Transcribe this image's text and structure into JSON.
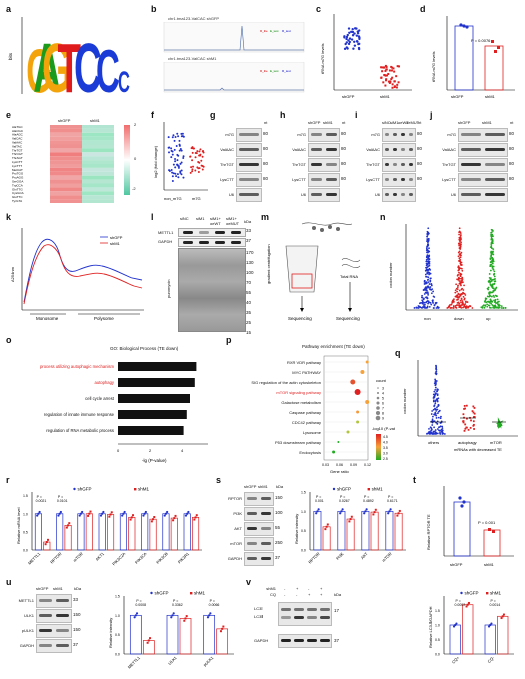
{
  "panels": {
    "a": "a",
    "b": "b",
    "c": "c",
    "d": "d",
    "e": "e",
    "f": "f",
    "g": "g",
    "h": "h",
    "i": "i",
    "j": "j",
    "k": "k",
    "l": "l",
    "m": "m",
    "n": "n",
    "o": "o",
    "p": "p",
    "q": "q",
    "r": "r",
    "s": "s",
    "t": "t",
    "u": "u",
    "v": "v"
  },
  "a": {
    "ylabel": "bits"
  },
  "b": {
    "track1": "chr1.tma123-ValCAC shGFP",
    "track2": "chr1.tma123-ValCAC shM1"
  },
  "c": {
    "ylabel": "tRNA m7G levels",
    "groups": [
      "shGFP",
      "shM1"
    ]
  },
  "d": {
    "ylabel": "tRNA m7G levels",
    "groups": [
      "shGFP",
      "shM1"
    ],
    "pvalue": "P = 0.0076"
  },
  "e": {
    "cols": [
      "shGFP",
      "shM1"
    ],
    "scale": [
      "2",
      "0",
      "-2"
    ]
  },
  "f": {
    "ylabel": "log2 (fold change)",
    "groups": [
      "non_m7G",
      "m7G"
    ]
  },
  "g": {
    "rows": [
      "m7G",
      "ValAAC",
      "ThrTGT",
      "LysCTT",
      "U6"
    ],
    "nt": "nt",
    "mw": [
      "80",
      "80",
      "80",
      "80"
    ]
  },
  "h": {
    "cols": [
      "shGFP",
      "shM1"
    ],
    "rows": [
      "m7G",
      "ValAAC",
      "ThrTGT",
      "LysCTT",
      "U6"
    ],
    "nt": "nt",
    "mw": [
      "80",
      "80",
      "80",
      "80"
    ]
  },
  "i": {
    "cols": [
      "siNC",
      "siM1",
      "oeWT",
      "oeMUT"
    ],
    "rows": [
      "m7G",
      "ValAAC",
      "ThrTGT",
      "LysCTT",
      "U6"
    ],
    "nt": "nt",
    "mw": [
      "80",
      "80",
      "80",
      "80"
    ]
  },
  "j": {
    "cols": [
      "shGFP",
      "shM1"
    ],
    "rows": [
      "m7G",
      "ValAAC",
      "ThrTGT",
      "LysCTT",
      "U6"
    ],
    "nt": "nt",
    "mw": [
      "80",
      "80",
      "80",
      "80"
    ]
  },
  "k": {
    "ylabel": "A254nm",
    "legend": [
      "shGFP",
      "shM1"
    ],
    "xlabels": [
      "Monosome",
      "Polysome"
    ]
  },
  "l": {
    "cols": [
      "siNC",
      "siM1",
      "siM1+ oeWT",
      "siM1+ oeMUT"
    ],
    "kda": "kDa",
    "rows": [
      "METTL1",
      "GAPDH",
      "puromycin"
    ],
    "mw": [
      "33",
      "37",
      "170",
      "130",
      "100",
      "70",
      "55",
      "40",
      "35",
      "25",
      "15"
    ]
  },
  "m": {
    "steps": [
      "gradient centrifugation",
      "Total RNA",
      "Sequencing",
      "Sequencing"
    ]
  },
  "n": {
    "ylabel": "codon number",
    "groups": [
      "non",
      "down",
      "up"
    ]
  },
  "o": {
    "title": "GO: Biological Process (TE down)",
    "terms": [
      "process utilizing autophagic mechanism",
      "autophagy",
      "cell cycle arrest",
      "regulation of innate immune response",
      "regulation of RNA metabolic process"
    ],
    "xlabel": "-lg (P-value)"
  },
  "p": {
    "title": "Pathway enrichment (TE down)",
    "terms": [
      "RXR VDR pathway",
      "MYC PATHWAY",
      "SIG regulation of the actin cytoskeleton",
      "mTOR signaling pathway",
      "Galactose metabolism",
      "Caspase pathway",
      "CDC42 pathway",
      "Lysosome",
      "P53 downstream pathway",
      "Endocytosis"
    ],
    "xlabel": "Gene ratio",
    "legend_count": "count",
    "legend_p": "-log10 (P-value)"
  },
  "q": {
    "ylabel": "codon number",
    "groups": [
      "others",
      "autophagy",
      "mTOR"
    ],
    "xlabel": "mRNAs with decreased TE"
  },
  "r": {
    "ylabel": "Relative mRNA level",
    "legend": [
      "shGFP",
      "shM1"
    ],
    "genes": [
      "METTL1",
      "RPTOR",
      "mTOR",
      "AKT1",
      "PIK3C2A",
      "PIK3CA",
      "PIK3CB",
      "PIK3R1"
    ],
    "pvals": [
      "P = 0.0021",
      "P = 0.0101"
    ]
  },
  "s": {
    "cols": [
      "shGFP",
      "shM1"
    ],
    "kda": "kDa",
    "rows": [
      "RPTOR",
      "PI3K",
      "AKT",
      "mTOR",
      "GAPDH"
    ],
    "mw": [
      "150",
      "100",
      "55",
      "250",
      "37"
    ],
    "ylabel": "Relative intensity",
    "legend": [
      "shGFP",
      "shM1"
    ],
    "genes": [
      "RPTOR",
      "PI3K",
      "AKT",
      "mTOR"
    ],
    "pvals": [
      "P = 0.001",
      "P = 0.0267",
      "P = 0.4892",
      "P = 0.6171"
    ]
  },
  "t": {
    "ylabel": "Relative RPTOR TE",
    "groups": [
      "shGFP",
      "shM1"
    ],
    "pvalue": "P = 0.001"
  },
  "u": {
    "cols": [
      "shGFP",
      "shM1"
    ],
    "kda": "kDa",
    "rows": [
      "METTL1",
      "ULK1",
      "pULK1",
      "GAPDH"
    ],
    "mw": [
      "33",
      "150",
      "150",
      "37"
    ],
    "ylabel": "Relative intensity",
    "legend": [
      "shGFP",
      "shM1"
    ],
    "genes": [
      "METTL1",
      "ULK1",
      "pULK1"
    ],
    "pvals": [
      "P = 0.0008",
      "P = 0.3362",
      "P = 0.0066"
    ]
  },
  "v": {
    "rows_top": [
      "shM1",
      "CQ"
    ],
    "signs": [
      "-",
      "+",
      "-",
      "+",
      "-",
      "-",
      "+",
      "+"
    ],
    "kda": "kDa",
    "rows": [
      "LC3Ⅰ",
      "LC3Ⅱ",
      "GAPDH"
    ],
    "mw": [
      "17",
      "37"
    ],
    "ylabel": "Relative LC3-Ⅱ/GAPDH",
    "legend": [
      "shGFP",
      "shM1"
    ],
    "groups": [
      "CQ+",
      "CQ-"
    ],
    "pvals": [
      "P = 0.0002",
      "P = 0.0014"
    ]
  },
  "colors": {
    "blue": "#2233cc",
    "red": "#e02020",
    "green": "#22aa22",
    "orange": "#f07c20",
    "highlight": "#e02020"
  }
}
